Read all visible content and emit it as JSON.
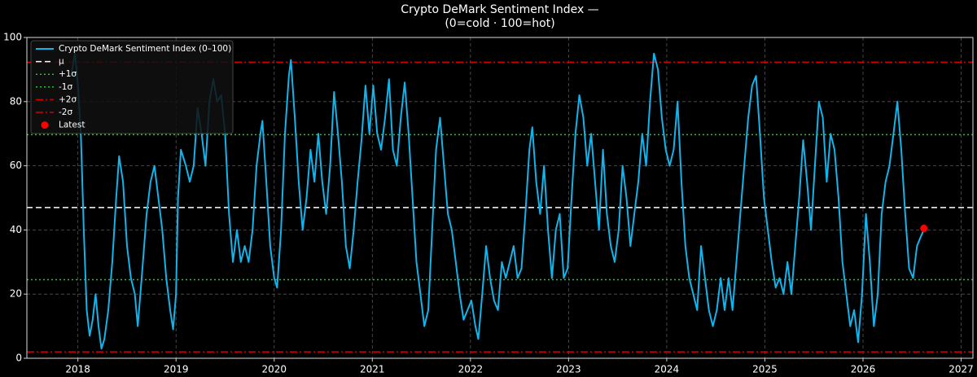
{
  "chart_data": {
    "type": "line",
    "title": "Crypto DeMark Sentiment Index —",
    "subtitle": "(0=cold · 100=hot)",
    "x": [
      2017.93,
      2017.97,
      2018.0,
      2018.03,
      2018.06,
      2018.09,
      2018.12,
      2018.15,
      2018.18,
      2018.21,
      2018.24,
      2018.27,
      2018.31,
      2018.35,
      2018.39,
      2018.42,
      2018.46,
      2018.5,
      2018.54,
      2018.58,
      2018.61,
      2018.65,
      2018.7,
      2018.74,
      2018.78,
      2018.82,
      2018.86,
      2018.9,
      2018.94,
      2018.97,
      2019.0,
      2019.02,
      2019.05,
      2019.1,
      2019.14,
      2019.18,
      2019.22,
      2019.26,
      2019.3,
      2019.34,
      2019.38,
      2019.42,
      2019.46,
      2019.5,
      2019.54,
      2019.58,
      2019.62,
      2019.66,
      2019.7,
      2019.74,
      2019.78,
      2019.82,
      2019.86,
      2019.88,
      2019.92,
      2019.96,
      2020.0,
      2020.03,
      2020.07,
      2020.11,
      2020.15,
      2020.17,
      2020.21,
      2020.25,
      2020.29,
      2020.33,
      2020.37,
      2020.41,
      2020.45,
      2020.49,
      2020.53,
      2020.57,
      2020.61,
      2020.65,
      2020.69,
      2020.73,
      2020.77,
      2020.81,
      2020.85,
      2020.89,
      2020.93,
      2020.97,
      2021.01,
      2021.05,
      2021.09,
      2021.13,
      2021.17,
      2021.21,
      2021.25,
      2021.29,
      2021.33,
      2021.37,
      2021.41,
      2021.45,
      2021.49,
      2021.53,
      2021.57,
      2021.61,
      2021.65,
      2021.69,
      2021.73,
      2021.77,
      2021.81,
      2021.85,
      2021.89,
      2021.93,
      2021.97,
      2022.01,
      2022.05,
      2022.08,
      2022.12,
      2022.16,
      2022.2,
      2022.24,
      2022.28,
      2022.32,
      2022.36,
      2022.4,
      2022.44,
      2022.48,
      2022.52,
      2022.56,
      2022.6,
      2022.63,
      2022.67,
      2022.71,
      2022.75,
      2022.79,
      2022.83,
      2022.87,
      2022.91,
      2022.95,
      2022.99,
      2023.03,
      2023.07,
      2023.11,
      2023.15,
      2023.19,
      2023.23,
      2023.27,
      2023.31,
      2023.35,
      2023.39,
      2023.43,
      2023.47,
      2023.51,
      2023.55,
      2023.59,
      2023.63,
      2023.67,
      2023.71,
      2023.75,
      2023.79,
      2023.83,
      2023.87,
      2023.91,
      2023.95,
      2023.99,
      2024.03,
      2024.07,
      2024.11,
      2024.15,
      2024.19,
      2024.23,
      2024.27,
      2024.31,
      2024.35,
      2024.39,
      2024.43,
      2024.47,
      2024.51,
      2024.55,
      2024.59,
      2024.63,
      2024.67,
      2024.71,
      2024.75,
      2024.79,
      2024.83,
      2024.87,
      2024.91,
      2024.95,
      2024.99,
      2025.03,
      2025.07,
      2025.11,
      2025.15,
      2025.19,
      2025.23,
      2025.27,
      2025.31,
      2025.35,
      2025.39,
      2025.43,
      2025.47,
      2025.51,
      2025.55,
      2025.59,
      2025.63,
      2025.67,
      2025.71,
      2025.75,
      2025.79,
      2025.83,
      2025.87,
      2025.91,
      2025.95,
      2025.99,
      2026.03,
      2026.07,
      2026.11,
      2026.15,
      2026.19,
      2026.23,
      2026.27,
      2026.31,
      2026.35,
      2026.39,
      2026.43,
      2026.47,
      2026.51,
      2026.55,
      2026.59,
      2026.62
    ],
    "series": [
      {
        "name": "Crypto DeMark Sentiment Index (0–100)",
        "color": "#12b4ec",
        "values": [
          88,
          95,
          85,
          70,
          40,
          15,
          7,
          12,
          20,
          10,
          3,
          6,
          15,
          30,
          50,
          63,
          55,
          35,
          25,
          20,
          10,
          25,
          45,
          55,
          60,
          50,
          40,
          25,
          15,
          9,
          20,
          50,
          65,
          60,
          55,
          60,
          78,
          70,
          60,
          80,
          87,
          80,
          82,
          70,
          45,
          30,
          40,
          30,
          35,
          30,
          40,
          60,
          70,
          74,
          55,
          35,
          25,
          22,
          40,
          70,
          88,
          93,
          75,
          55,
          40,
          50,
          65,
          55,
          70,
          55,
          45,
          60,
          83,
          70,
          55,
          35,
          28,
          40,
          55,
          68,
          85,
          70,
          85,
          70,
          65,
          75,
          87,
          65,
          60,
          75,
          86,
          70,
          50,
          30,
          20,
          10,
          15,
          40,
          65,
          75,
          60,
          45,
          40,
          30,
          20,
          12,
          15,
          18,
          10,
          6,
          20,
          35,
          25,
          18,
          15,
          30,
          25,
          30,
          35,
          25,
          28,
          45,
          65,
          72,
          55,
          45,
          60,
          40,
          25,
          40,
          45,
          25,
          28,
          50,
          70,
          82,
          75,
          60,
          70,
          55,
          40,
          65,
          45,
          35,
          30,
          40,
          60,
          50,
          35,
          45,
          55,
          70,
          60,
          80,
          95,
          90,
          75,
          65,
          60,
          65,
          80,
          55,
          35,
          25,
          20,
          15,
          35,
          25,
          15,
          10,
          15,
          25,
          15,
          25,
          15,
          30,
          45,
          60,
          75,
          85,
          88,
          70,
          50,
          40,
          30,
          22,
          25,
          20,
          30,
          20,
          35,
          50,
          68,
          55,
          40,
          60,
          80,
          75,
          55,
          70,
          65,
          50,
          30,
          20,
          10,
          15,
          5,
          20,
          45,
          30,
          10,
          20,
          45,
          55,
          60,
          70,
          80,
          65,
          45,
          28,
          25,
          35,
          38,
          40
        ]
      }
    ],
    "hlines": [
      {
        "name": "μ",
        "value": 47,
        "color": "#ffffff",
        "style": "dashed"
      },
      {
        "name": "+1σ",
        "value": 69.7,
        "color": "#22c722",
        "style": "dotted"
      },
      {
        "name": "-1σ",
        "value": 24.5,
        "color": "#22c722",
        "style": "dotted"
      },
      {
        "name": "+2σ",
        "value": 92.3,
        "color": "#d40000",
        "style": "dashdot"
      },
      {
        "name": "-2σ",
        "value": 2,
        "color": "#d40000",
        "style": "dashdot"
      }
    ],
    "points": [
      {
        "name": "Latest",
        "x": 2026.62,
        "y": 40.5,
        "color": "#ff0000"
      }
    ],
    "xlim": [
      2017.48,
      2027.12
    ],
    "xticks": [
      2018,
      2019,
      2020,
      2021,
      2022,
      2023,
      2024,
      2025,
      2026,
      2027
    ],
    "ylim": [
      0,
      100
    ],
    "yticks": [
      0,
      20,
      40,
      60,
      80,
      100
    ],
    "grid": true,
    "legend": "upper left"
  }
}
